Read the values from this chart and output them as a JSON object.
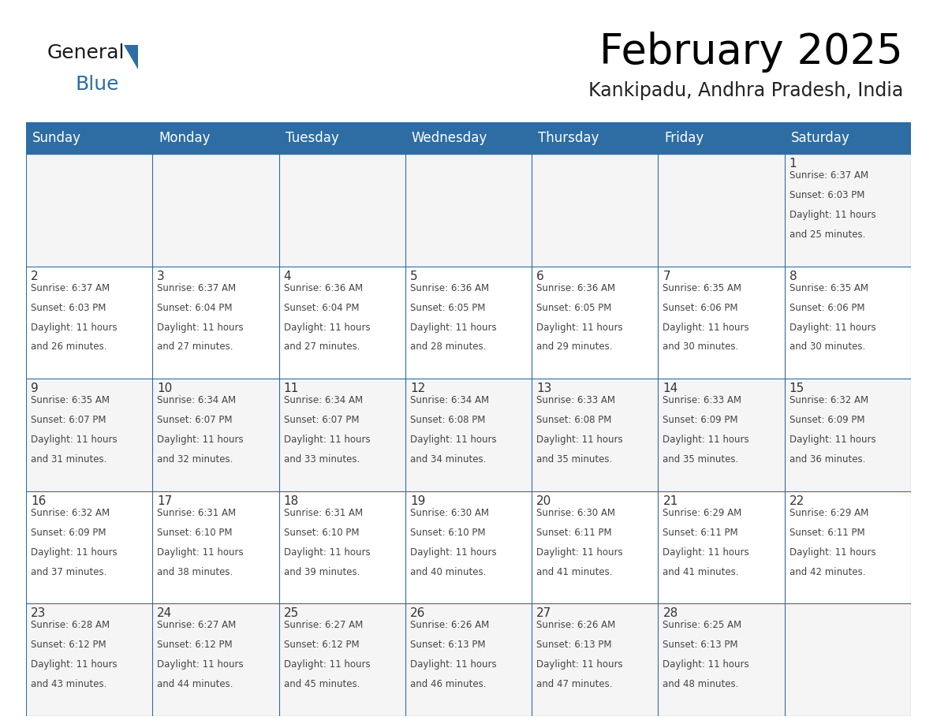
{
  "title": "February 2025",
  "subtitle": "Kankipadu, Andhra Pradesh, India",
  "header_bg": "#2E6DA4",
  "header_text": "#FFFFFF",
  "border_color": "#2E6DA4",
  "day_headers": [
    "Sunday",
    "Monday",
    "Tuesday",
    "Wednesday",
    "Thursday",
    "Friday",
    "Saturday"
  ],
  "days": [
    {
      "day": 1,
      "col": 6,
      "row": 0,
      "sunrise": "6:37 AM",
      "sunset": "6:03 PM",
      "daylight": "11 hours and 25 minutes."
    },
    {
      "day": 2,
      "col": 0,
      "row": 1,
      "sunrise": "6:37 AM",
      "sunset": "6:03 PM",
      "daylight": "11 hours and 26 minutes."
    },
    {
      "day": 3,
      "col": 1,
      "row": 1,
      "sunrise": "6:37 AM",
      "sunset": "6:04 PM",
      "daylight": "11 hours and 27 minutes."
    },
    {
      "day": 4,
      "col": 2,
      "row": 1,
      "sunrise": "6:36 AM",
      "sunset": "6:04 PM",
      "daylight": "11 hours and 27 minutes."
    },
    {
      "day": 5,
      "col": 3,
      "row": 1,
      "sunrise": "6:36 AM",
      "sunset": "6:05 PM",
      "daylight": "11 hours and 28 minutes."
    },
    {
      "day": 6,
      "col": 4,
      "row": 1,
      "sunrise": "6:36 AM",
      "sunset": "6:05 PM",
      "daylight": "11 hours and 29 minutes."
    },
    {
      "day": 7,
      "col": 5,
      "row": 1,
      "sunrise": "6:35 AM",
      "sunset": "6:06 PM",
      "daylight": "11 hours and 30 minutes."
    },
    {
      "day": 8,
      "col": 6,
      "row": 1,
      "sunrise": "6:35 AM",
      "sunset": "6:06 PM",
      "daylight": "11 hours and 30 minutes."
    },
    {
      "day": 9,
      "col": 0,
      "row": 2,
      "sunrise": "6:35 AM",
      "sunset": "6:07 PM",
      "daylight": "11 hours and 31 minutes."
    },
    {
      "day": 10,
      "col": 1,
      "row": 2,
      "sunrise": "6:34 AM",
      "sunset": "6:07 PM",
      "daylight": "11 hours and 32 minutes."
    },
    {
      "day": 11,
      "col": 2,
      "row": 2,
      "sunrise": "6:34 AM",
      "sunset": "6:07 PM",
      "daylight": "11 hours and 33 minutes."
    },
    {
      "day": 12,
      "col": 3,
      "row": 2,
      "sunrise": "6:34 AM",
      "sunset": "6:08 PM",
      "daylight": "11 hours and 34 minutes."
    },
    {
      "day": 13,
      "col": 4,
      "row": 2,
      "sunrise": "6:33 AM",
      "sunset": "6:08 PM",
      "daylight": "11 hours and 35 minutes."
    },
    {
      "day": 14,
      "col": 5,
      "row": 2,
      "sunrise": "6:33 AM",
      "sunset": "6:09 PM",
      "daylight": "11 hours and 35 minutes."
    },
    {
      "day": 15,
      "col": 6,
      "row": 2,
      "sunrise": "6:32 AM",
      "sunset": "6:09 PM",
      "daylight": "11 hours and 36 minutes."
    },
    {
      "day": 16,
      "col": 0,
      "row": 3,
      "sunrise": "6:32 AM",
      "sunset": "6:09 PM",
      "daylight": "11 hours and 37 minutes."
    },
    {
      "day": 17,
      "col": 1,
      "row": 3,
      "sunrise": "6:31 AM",
      "sunset": "6:10 PM",
      "daylight": "11 hours and 38 minutes."
    },
    {
      "day": 18,
      "col": 2,
      "row": 3,
      "sunrise": "6:31 AM",
      "sunset": "6:10 PM",
      "daylight": "11 hours and 39 minutes."
    },
    {
      "day": 19,
      "col": 3,
      "row": 3,
      "sunrise": "6:30 AM",
      "sunset": "6:10 PM",
      "daylight": "11 hours and 40 minutes."
    },
    {
      "day": 20,
      "col": 4,
      "row": 3,
      "sunrise": "6:30 AM",
      "sunset": "6:11 PM",
      "daylight": "11 hours and 41 minutes."
    },
    {
      "day": 21,
      "col": 5,
      "row": 3,
      "sunrise": "6:29 AM",
      "sunset": "6:11 PM",
      "daylight": "11 hours and 41 minutes."
    },
    {
      "day": 22,
      "col": 6,
      "row": 3,
      "sunrise": "6:29 AM",
      "sunset": "6:11 PM",
      "daylight": "11 hours and 42 minutes."
    },
    {
      "day": 23,
      "col": 0,
      "row": 4,
      "sunrise": "6:28 AM",
      "sunset": "6:12 PM",
      "daylight": "11 hours and 43 minutes."
    },
    {
      "day": 24,
      "col": 1,
      "row": 4,
      "sunrise": "6:27 AM",
      "sunset": "6:12 PM",
      "daylight": "11 hours and 44 minutes."
    },
    {
      "day": 25,
      "col": 2,
      "row": 4,
      "sunrise": "6:27 AM",
      "sunset": "6:12 PM",
      "daylight": "11 hours and 45 minutes."
    },
    {
      "day": 26,
      "col": 3,
      "row": 4,
      "sunrise": "6:26 AM",
      "sunset": "6:13 PM",
      "daylight": "11 hours and 46 minutes."
    },
    {
      "day": 27,
      "col": 4,
      "row": 4,
      "sunrise": "6:26 AM",
      "sunset": "6:13 PM",
      "daylight": "11 hours and 47 minutes."
    },
    {
      "day": 28,
      "col": 5,
      "row": 4,
      "sunrise": "6:25 AM",
      "sunset": "6:13 PM",
      "daylight": "11 hours and 48 minutes."
    }
  ],
  "num_rows": 5,
  "num_cols": 7,
  "logo_general_color": "#1a1a1a",
  "logo_blue_color": "#2E6DA4",
  "logo_triangle_color": "#2E6DA4",
  "title_fontsize": 38,
  "subtitle_fontsize": 17,
  "header_fontsize": 12,
  "day_num_fontsize": 11,
  "cell_text_fontsize": 8.5
}
